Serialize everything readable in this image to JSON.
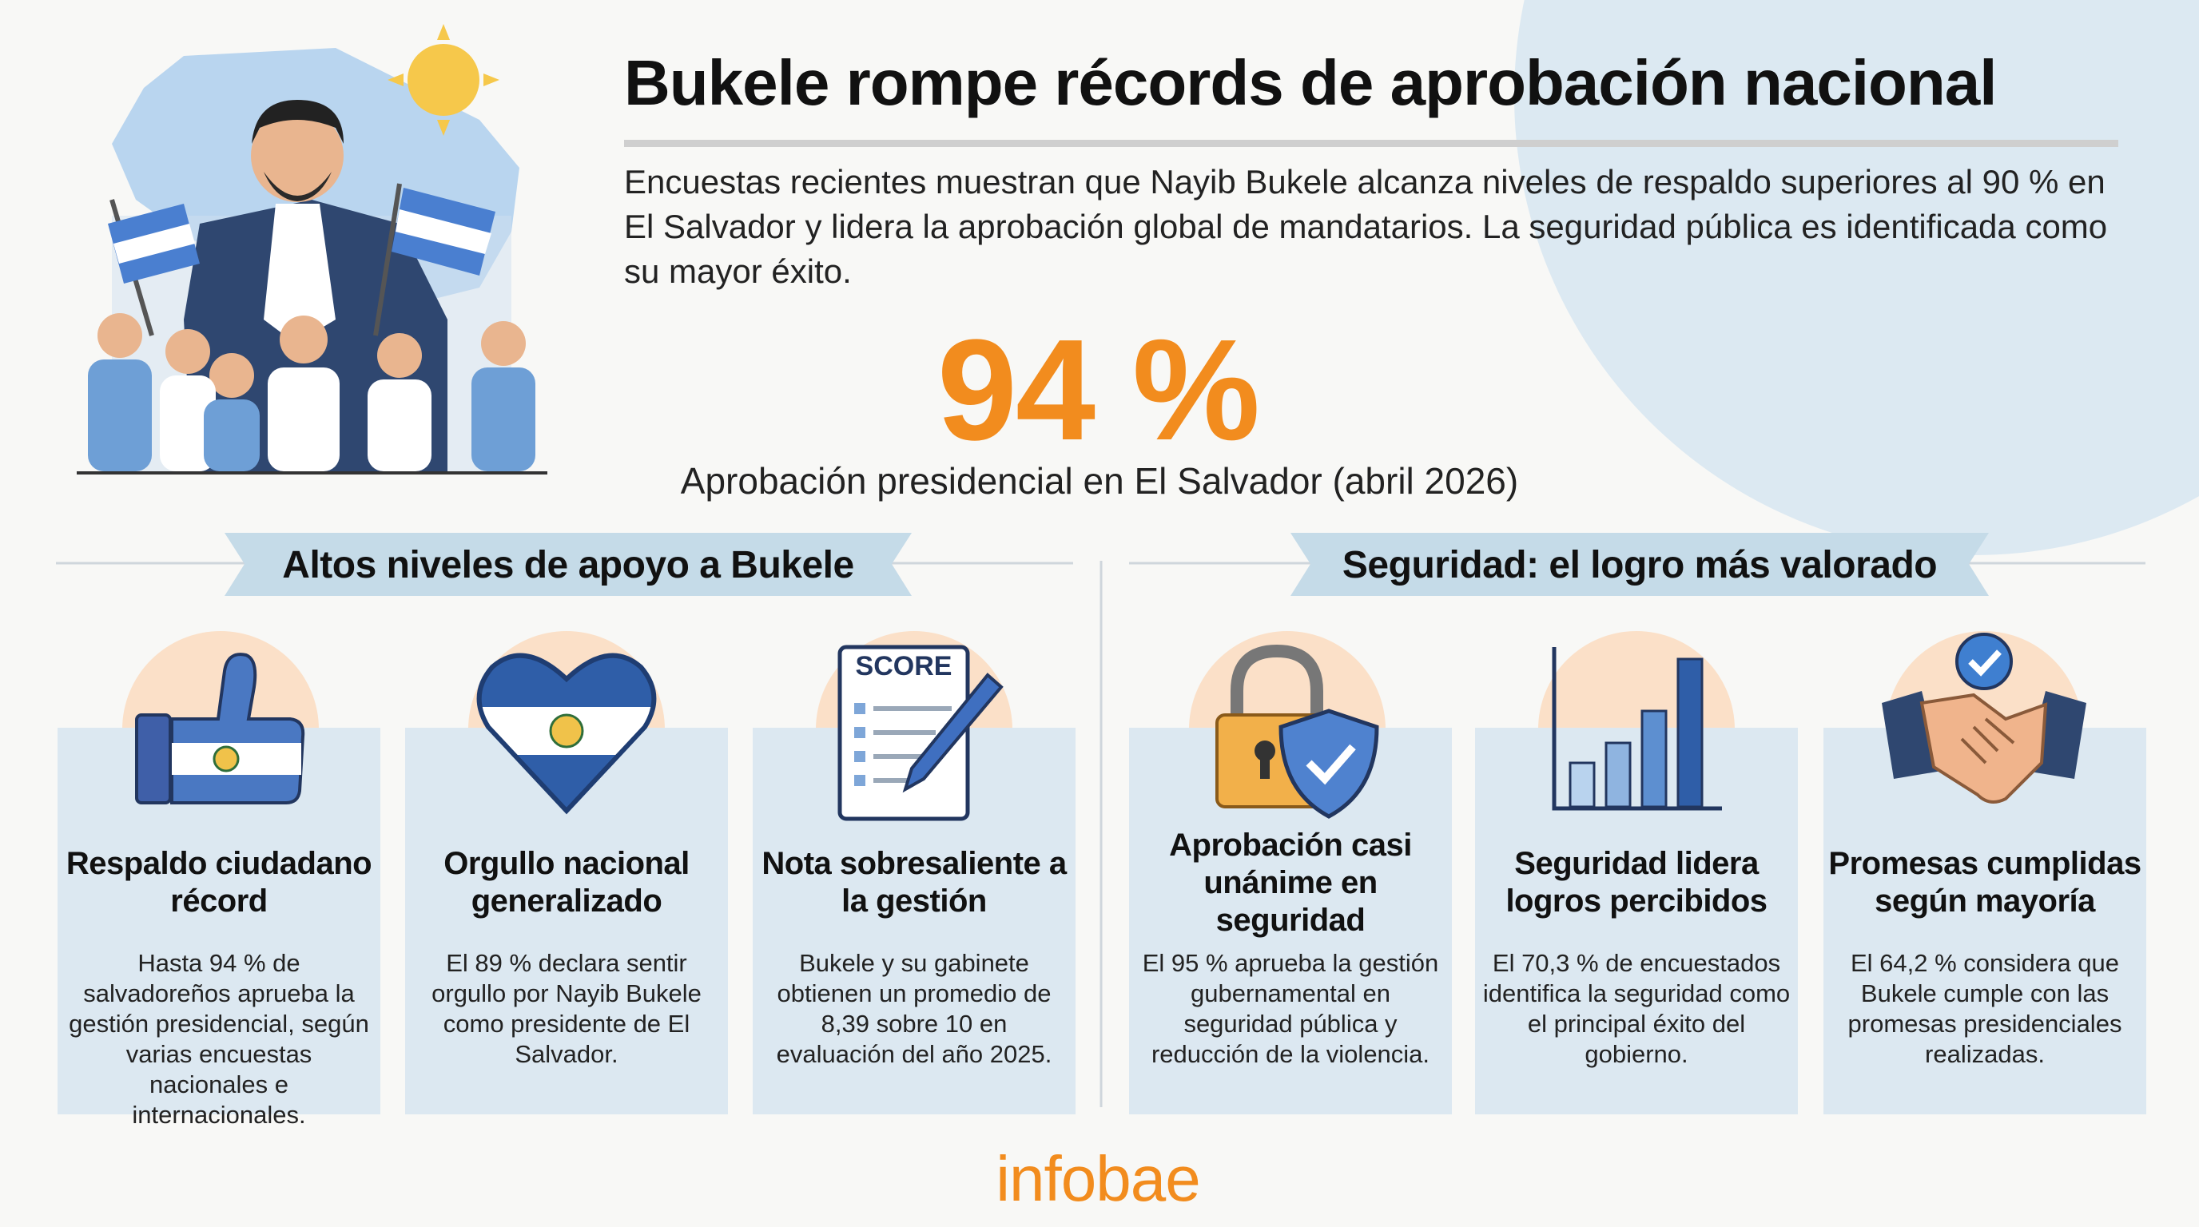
{
  "header": {
    "title": "Bukele rompe récords de aprobación nacional",
    "subtitle": "Encuestas recientes muestran que Nayib Bukele alcanza niveles de respaldo superiores al 90 % en El Salvador y lidera la aprobación global de mandatarios. La seguridad pública es identificada como su mayor éxito."
  },
  "highlight": {
    "value": "94 %",
    "caption": "Aprobación presidencial en El Salvador (abril 2026)"
  },
  "sections": [
    {
      "title": "Altos niveles de apoyo a Bukele",
      "cards": [
        {
          "title": "Respaldo ciudadano récord",
          "text": "Hasta 94 % de salvadoreños aprueba la gestión presidencial, según varias encuestas nacionales e internacionales."
        },
        {
          "title": "Orgullo nacional generalizado",
          "text": "El 89 % declara sentir orgullo por Nayib Bukele como presidente de El Salvador."
        },
        {
          "title": "Nota sobresaliente a la gestión",
          "icon_text": "SCORE",
          "text": "Bukele y su gabinete obtienen un promedio de 8,39 sobre 10 en evaluación del año 2025."
        }
      ]
    },
    {
      "title": "Seguridad: el logro más valorado",
      "cards": [
        {
          "title": "Aprobación casi unánime en seguridad",
          "text": "El 95 % aprueba la gestión gubernamental en seguridad pública y reducción de la violencia."
        },
        {
          "title": "Seguridad lidera logros percibidos",
          "text": "El 70,3 % de encuestados identifica la seguridad como el principal éxito del gobierno."
        },
        {
          "title": "Promesas cumplidas según mayoría",
          "text": "El 64,2 % considera que Bukele cumple con las promesas presidenciales realizadas."
        }
      ]
    }
  ],
  "footer": {
    "brand": "infobae"
  }
}
